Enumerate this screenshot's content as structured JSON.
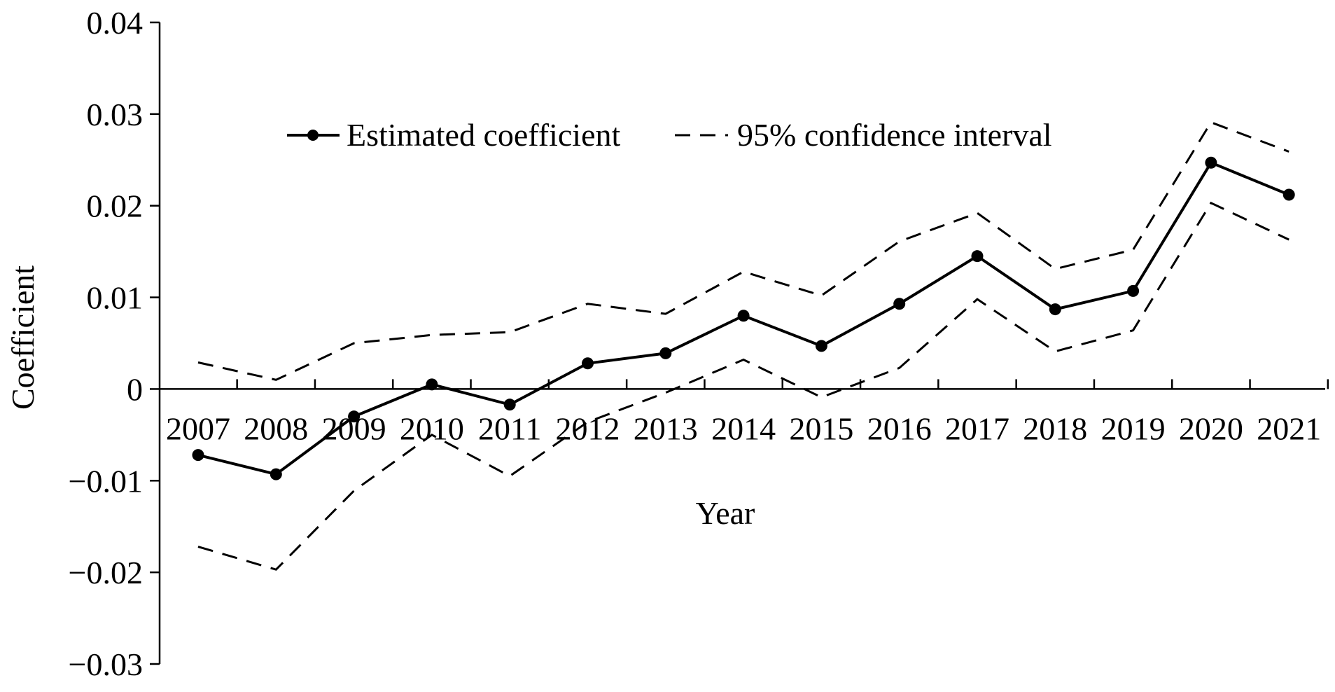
{
  "chart_data": {
    "type": "line",
    "title": "",
    "xlabel": "Year",
    "ylabel": "Coefficient",
    "categories": [
      "2007",
      "2008",
      "2009",
      "2010",
      "2011",
      "2012",
      "2013",
      "2014",
      "2015",
      "2016",
      "2017",
      "2018",
      "2019",
      "2020",
      "2021"
    ],
    "ylim": [
      -0.03,
      0.04
    ],
    "yticks": [
      {
        "value": 0.04,
        "label": "0.04"
      },
      {
        "value": 0.03,
        "label": "0.03"
      },
      {
        "value": 0.02,
        "label": "0.02"
      },
      {
        "value": 0.01,
        "label": "0.01"
      },
      {
        "value": 0,
        "label": "0"
      },
      {
        "value": -0.01,
        "label": "−0.01"
      },
      {
        "value": -0.02,
        "label": "−0.02"
      },
      {
        "value": -0.03,
        "label": "−0.03"
      }
    ],
    "grid": false,
    "legend_position": "top-center",
    "series": [
      {
        "name": "Estimated coefficient",
        "style": "solid-marker",
        "values": [
          -0.0072,
          -0.0093,
          -0.003,
          0.0005,
          -0.0017,
          0.0028,
          0.0039,
          0.008,
          0.0047,
          0.0093,
          0.0145,
          0.0087,
          0.0107,
          0.0247,
          0.0212
        ]
      },
      {
        "name": "95% confidence interval",
        "style": "dashed",
        "values": [
          0.0029,
          0.001,
          0.005,
          0.0059,
          0.0062,
          0.0093,
          0.0082,
          0.0128,
          0.0102,
          0.0161,
          0.0192,
          0.0131,
          0.0152,
          0.0291,
          0.0259
        ]
      },
      {
        "name": "95% confidence interval (lower)",
        "style": "dashed",
        "legend": false,
        "values": [
          -0.0172,
          -0.0197,
          -0.0111,
          -0.005,
          -0.0095,
          -0.0036,
          -0.0004,
          0.0032,
          -0.0009,
          0.0023,
          0.0098,
          0.0041,
          0.0064,
          0.0203,
          0.0163
        ]
      }
    ],
    "colors": {
      "line": "#000000",
      "background": "#ffffff"
    }
  }
}
